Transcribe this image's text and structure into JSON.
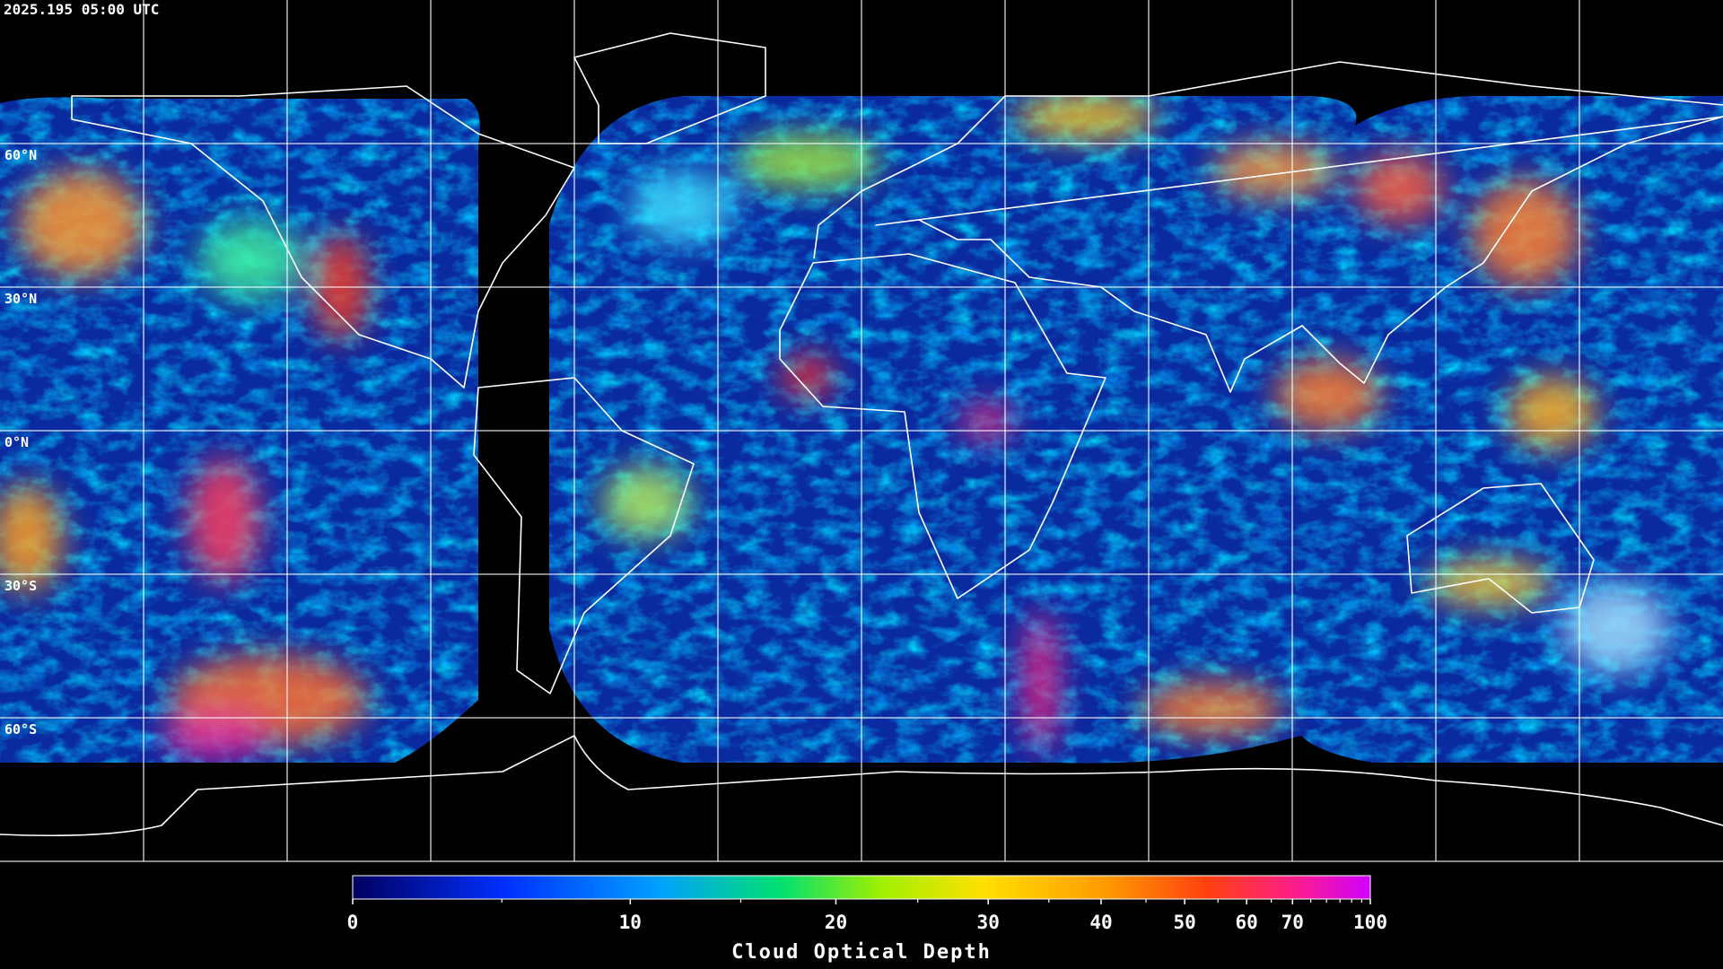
{
  "timestamp": "2025.195 05:00 UTC",
  "map": {
    "lon_range": [
      -180,
      180
    ],
    "lat_range": [
      -90,
      90
    ],
    "lon_lines": [
      -150,
      -120,
      -90,
      -60,
      -30,
      0,
      30,
      60,
      90,
      120,
      150
    ],
    "lat_lines": [
      {
        "value": 60,
        "label": "60°N"
      },
      {
        "value": 30,
        "label": "30°N"
      },
      {
        "value": 0,
        "label": "0°N"
      },
      {
        "value": -30,
        "label": "30°S"
      },
      {
        "value": -60,
        "label": "60°S"
      }
    ]
  },
  "colorbar": {
    "title": "Cloud Optical Depth",
    "range": [
      0,
      100
    ],
    "ticks": [
      0,
      10,
      20,
      30,
      40,
      50,
      60,
      70,
      100
    ],
    "minor_ticks": [
      5,
      15,
      25,
      35,
      45,
      55,
      65,
      75,
      80,
      85,
      90,
      95
    ]
  }
}
